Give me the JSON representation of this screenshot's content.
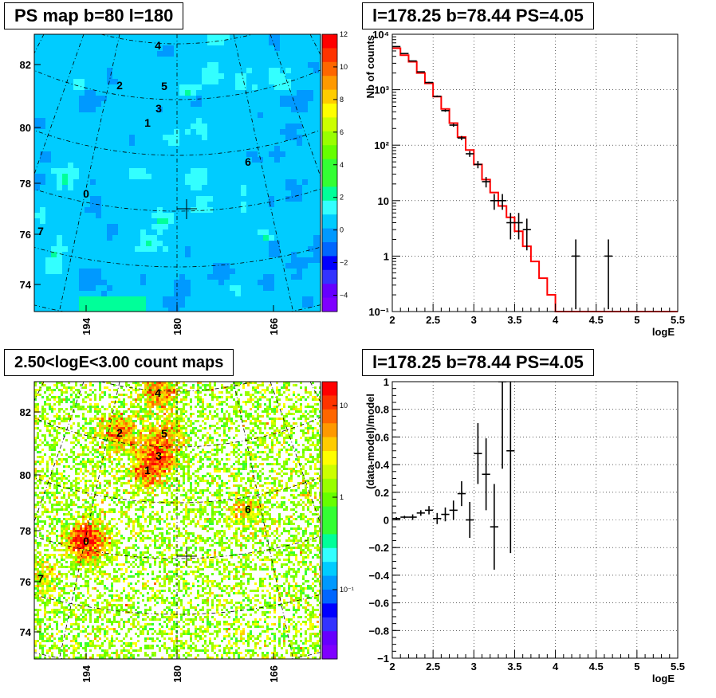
{
  "panels": {
    "tl_title": "PS map b=80 l=180",
    "tr_title": "l=178.25 b=78.44 PS=4.05",
    "bl_title": "2.50<logE<3.00 count maps",
    "br_title": "l=178.25 b=78.44 PS=4.05"
  },
  "colors": {
    "map_bg": "#22e6f0",
    "axis": "#000000",
    "model_line": "#ff0000",
    "data_points": "#000000"
  },
  "chart_data": [
    {
      "type": "heatmap",
      "title": "PS map b=80 l=180",
      "yticks": [
        "82",
        "80",
        "78",
        "76",
        "74"
      ],
      "xticks": [
        "194",
        "180",
        "166"
      ],
      "colorbar_ticks": [
        "12",
        "10",
        "8",
        "6",
        "4",
        "2",
        "0",
        "−2",
        "−4"
      ],
      "colorbar_range": [
        -5,
        12
      ],
      "sources": [
        {
          "label": "0",
          "l": 188.5,
          "b": 77.6
        },
        {
          "label": "1",
          "l": 183.2,
          "b": 80.4
        },
        {
          "label": "2",
          "l": 186.8,
          "b": 81.6
        },
        {
          "label": "3",
          "l": 182.6,
          "b": 80.7
        },
        {
          "label": "4",
          "l": 182.8,
          "b": 82.8
        },
        {
          "label": "5",
          "l": 182.1,
          "b": 81.5
        },
        {
          "label": "6",
          "l": 170.2,
          "b": 79.1
        },
        {
          "label": "7",
          "l": 198.5,
          "b": 76.2
        }
      ],
      "marker": {
        "l": 178.25,
        "b": 78.44
      }
    },
    {
      "type": "line",
      "title": "l=178.25 b=78.44 PS=4.05",
      "xlabel": "logE",
      "ylabel": "Nb of counts",
      "xlim": [
        2,
        5.5
      ],
      "ylim": [
        0.1,
        10000
      ],
      "yscale": "log",
      "grid": true,
      "xticks": [
        "2",
        "2.5",
        "3",
        "3.5",
        "4",
        "4.5",
        "5",
        "5.5"
      ],
      "yticks": [
        "10",
        "10²",
        "10³",
        "10⁴",
        "1",
        "10⁻¹"
      ],
      "model_edges": [
        2.0,
        2.1,
        2.2,
        2.3,
        2.4,
        2.5,
        2.6,
        2.7,
        2.8,
        2.9,
        3.0,
        3.1,
        3.2,
        3.3,
        3.4,
        3.5,
        3.6,
        3.7,
        3.8,
        3.9,
        4.0,
        5.5
      ],
      "model_values": [
        5600,
        4200,
        3200,
        2000,
        1300,
        750,
        450,
        250,
        140,
        82,
        45,
        24,
        14,
        8,
        5,
        2.8,
        1.5,
        0.8,
        0.4,
        0.2,
        0.1
      ],
      "data_points": [
        {
          "x": 2.05,
          "y": 6000
        },
        {
          "x": 2.15,
          "y": 4500
        },
        {
          "x": 2.25,
          "y": 3300
        },
        {
          "x": 2.35,
          "y": 2100
        },
        {
          "x": 2.45,
          "y": 1350
        },
        {
          "x": 2.55,
          "y": 760
        },
        {
          "x": 2.65,
          "y": 420
        },
        {
          "x": 2.75,
          "y": 230
        },
        {
          "x": 2.85,
          "y": 135
        },
        {
          "x": 2.95,
          "y": 70
        },
        {
          "x": 3.05,
          "y": 45
        },
        {
          "x": 3.15,
          "y": 22
        },
        {
          "x": 3.25,
          "y": 10
        },
        {
          "x": 3.35,
          "y": 10
        },
        {
          "x": 3.45,
          "y": 4
        },
        {
          "x": 3.55,
          "y": 4
        },
        {
          "x": 3.65,
          "y": 3
        },
        {
          "x": 4.25,
          "y": 1
        },
        {
          "x": 4.65,
          "y": 1
        }
      ]
    },
    {
      "type": "heatmap",
      "title": "2.50<logE<3.00 count maps",
      "yticks": [
        "82",
        "80",
        "78",
        "76",
        "74"
      ],
      "xticks": [
        "194",
        "180",
        "166"
      ],
      "colorbar_ticks": [
        "10",
        "1",
        "10⁻¹"
      ],
      "colorbar_scale": "log"
    },
    {
      "type": "scatter",
      "title": "l=178.25 b=78.44 PS=4.05",
      "xlabel": "logE",
      "ylabel": "(data-model)/model",
      "xlim": [
        2,
        5.5
      ],
      "ylim": [
        -1,
        1
      ],
      "grid": true,
      "xticks": [
        "2",
        "2.5",
        "3",
        "3.5",
        "4",
        "4.5",
        "5",
        "5.5"
      ],
      "yticks": [
        "1",
        "0.8",
        "0.6",
        "0.4",
        "0.2",
        "0",
        "−0.2",
        "−0.4",
        "−0.6",
        "−0.8",
        "−1"
      ],
      "points": [
        {
          "x": 2.05,
          "y": 0.01,
          "err": 0.01
        },
        {
          "x": 2.15,
          "y": 0.02,
          "err": 0.01
        },
        {
          "x": 2.25,
          "y": 0.02,
          "err": 0.02
        },
        {
          "x": 2.35,
          "y": 0.05,
          "err": 0.02
        },
        {
          "x": 2.45,
          "y": 0.07,
          "err": 0.03
        },
        {
          "x": 2.55,
          "y": 0.01,
          "err": 0.04
        },
        {
          "x": 2.65,
          "y": 0.04,
          "err": 0.05
        },
        {
          "x": 2.75,
          "y": 0.07,
          "err": 0.07
        },
        {
          "x": 2.85,
          "y": 0.19,
          "err": 0.09
        },
        {
          "x": 2.95,
          "y": 0.0,
          "err": 0.13
        },
        {
          "x": 3.05,
          "y": 0.48,
          "err": 0.22
        },
        {
          "x": 3.15,
          "y": 0.33,
          "err": 0.26
        },
        {
          "x": 3.25,
          "y": -0.05,
          "err": 0.31
        },
        {
          "x": 3.35,
          "y": 1.0,
          "err": 0.63
        },
        {
          "x": 3.45,
          "y": 0.5,
          "err": 0.74
        }
      ]
    }
  ]
}
